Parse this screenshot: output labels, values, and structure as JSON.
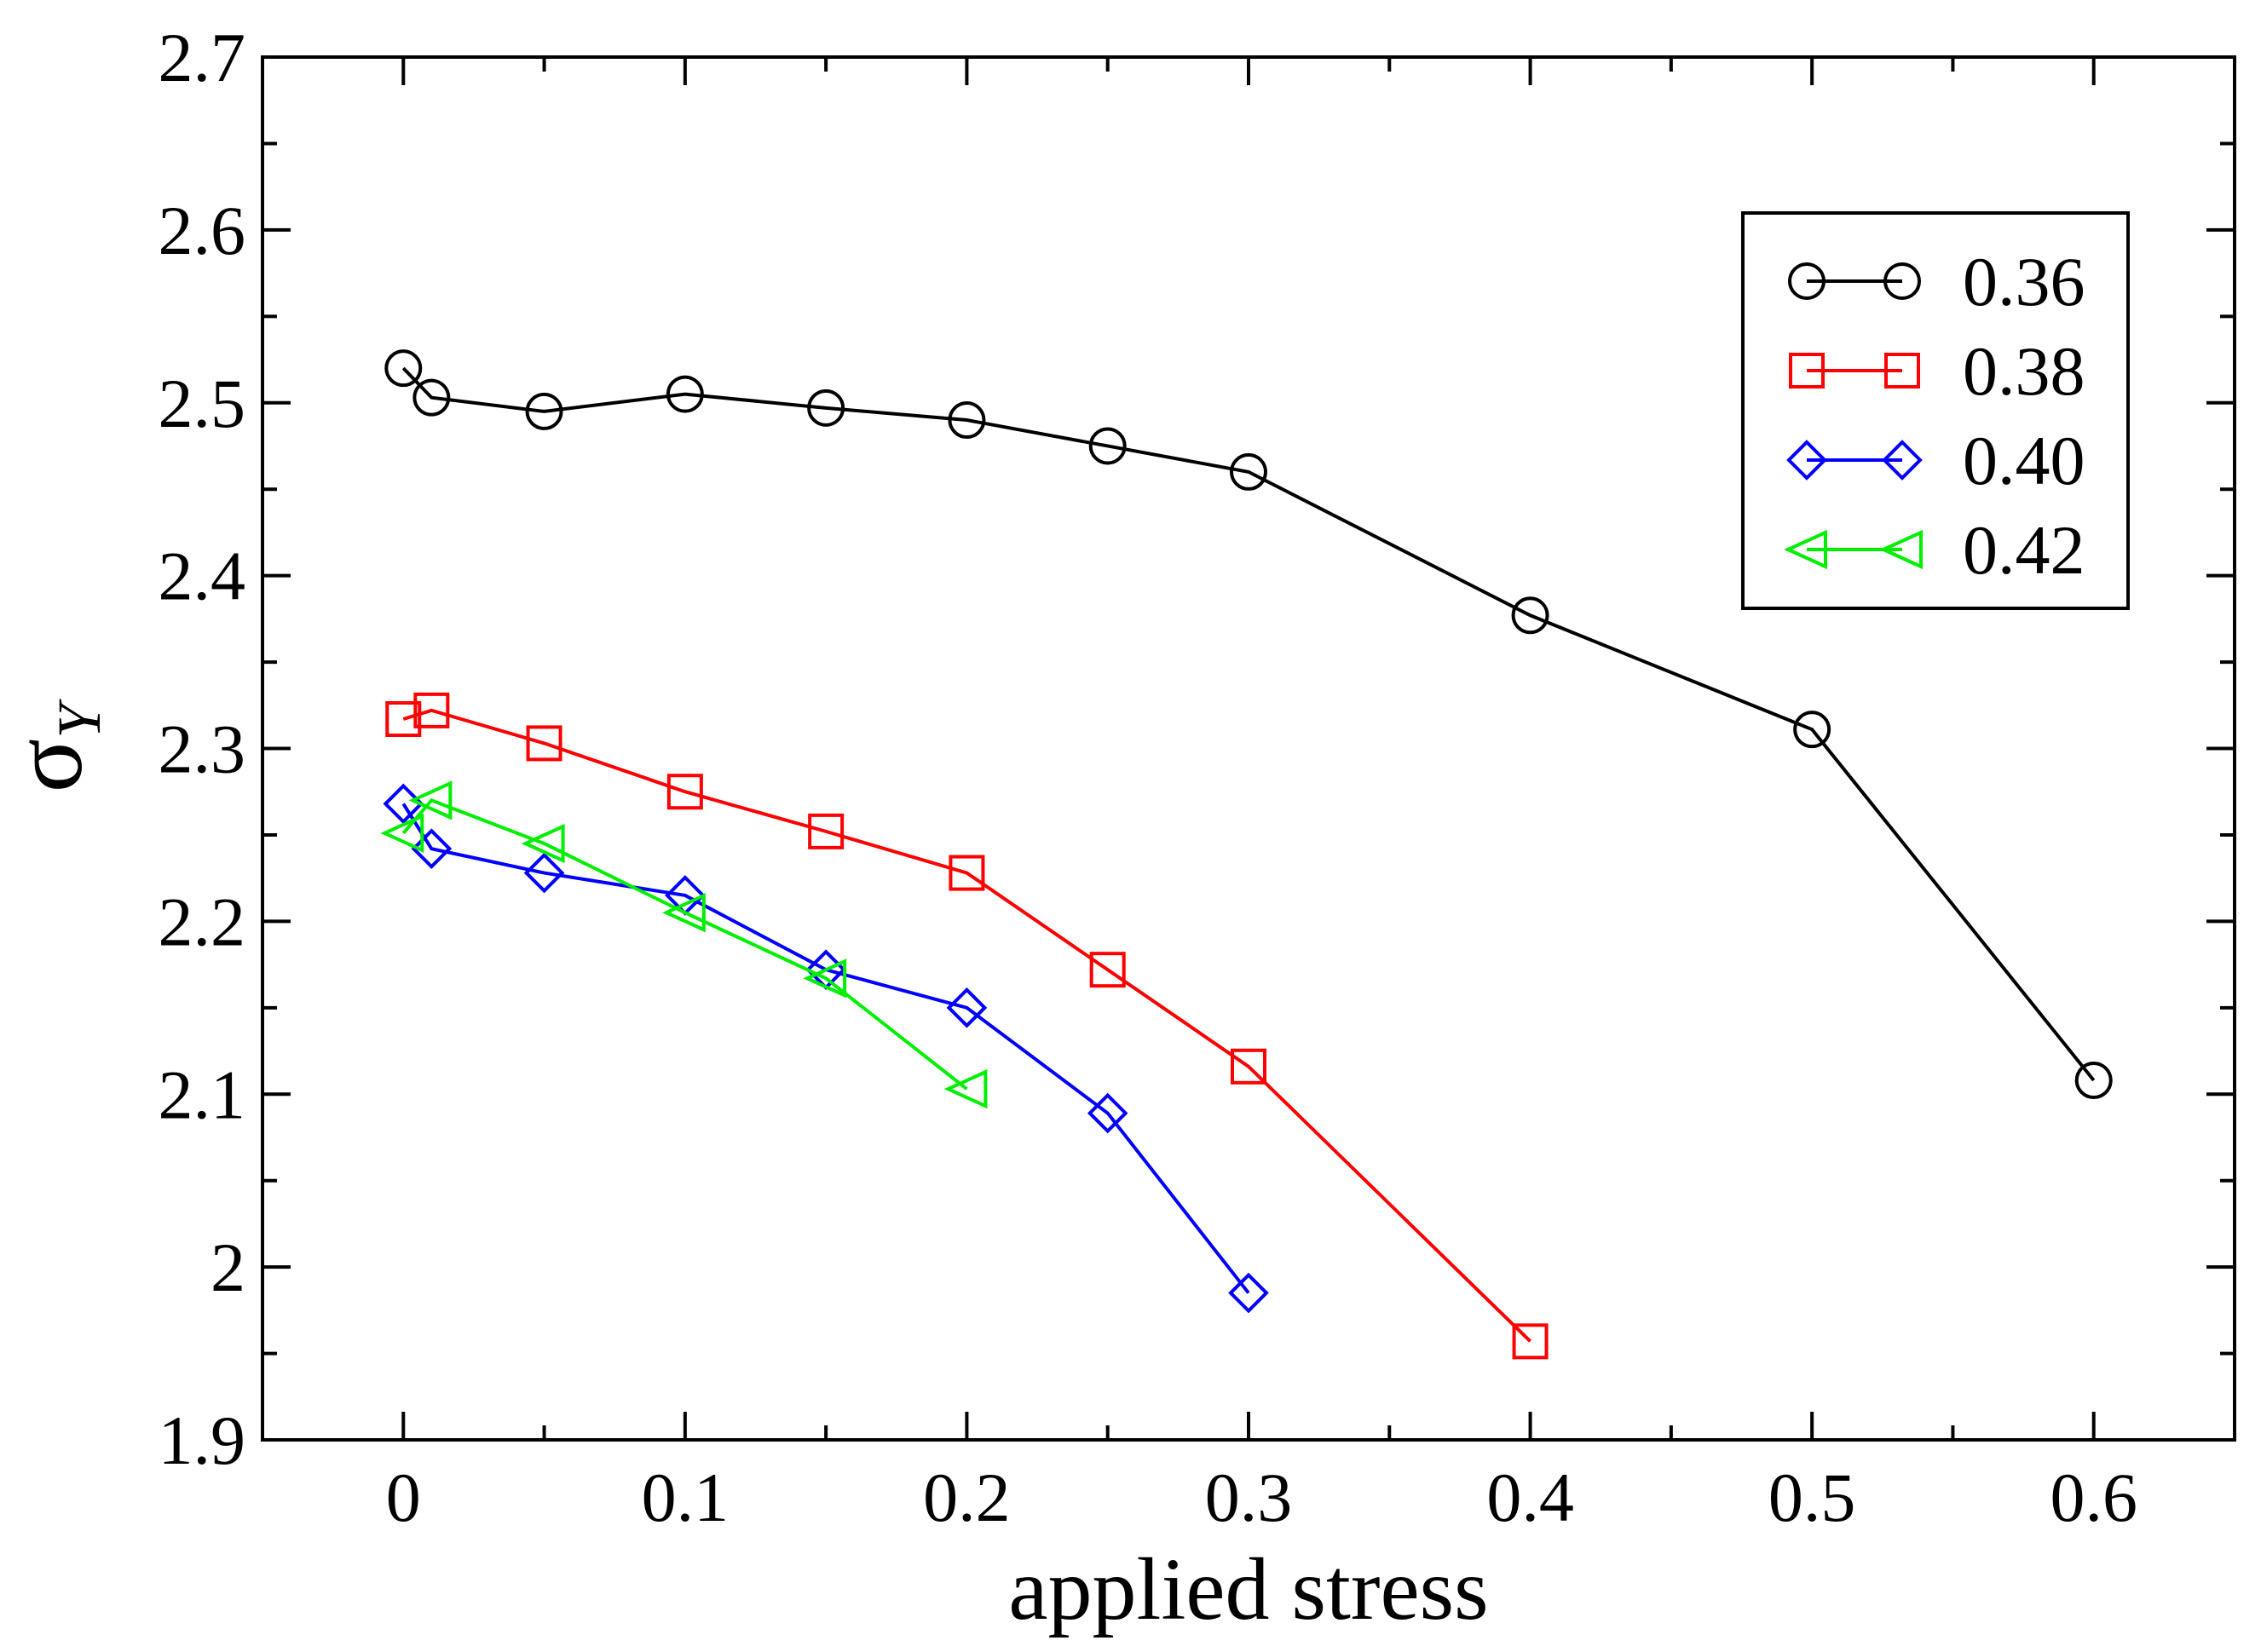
{
  "chart_data": {
    "type": "line",
    "title": "",
    "xlabel": "applied stress",
    "ylabel": "σ",
    "ylabel_subscript": "Y",
    "xlim": [
      -0.05,
      0.65
    ],
    "ylim": [
      1.9,
      2.7
    ],
    "xticks": [
      0,
      0.1,
      0.2,
      0.3,
      0.4,
      0.5,
      0.6
    ],
    "xtick_labels": [
      "0",
      "0.1",
      "0.2",
      "0.3",
      "0.4",
      "0.5",
      "0.6"
    ],
    "xminor": [
      -0.05,
      0.05,
      0.15,
      0.25,
      0.35,
      0.45,
      0.55,
      0.65
    ],
    "yticks": [
      1.9,
      2.0,
      2.1,
      2.2,
      2.3,
      2.4,
      2.5,
      2.6,
      2.7
    ],
    "ytick_labels": [
      "1.9",
      "2",
      "2.1",
      "2.2",
      "2.3",
      "2.4",
      "2.5",
      "2.6",
      "2.7"
    ],
    "yminor": [
      1.95,
      2.05,
      2.15,
      2.25,
      2.35,
      2.45,
      2.55,
      2.65
    ],
    "grid": false,
    "legend_position": "top-right",
    "series": [
      {
        "name": "0.36",
        "color": "#000000",
        "marker": "circle",
        "x": [
          0,
          0.01,
          0.05,
          0.1,
          0.15,
          0.2,
          0.25,
          0.3,
          0.4,
          0.5,
          0.6
        ],
        "y": [
          2.52,
          2.503,
          2.495,
          2.505,
          2.497,
          2.49,
          2.475,
          2.46,
          2.377,
          2.311,
          2.108
        ]
      },
      {
        "name": "0.38",
        "color": "#ff0000",
        "marker": "square",
        "x": [
          0,
          0.01,
          0.05,
          0.1,
          0.15,
          0.2,
          0.25,
          0.3,
          0.4
        ],
        "y": [
          2.317,
          2.322,
          2.303,
          2.275,
          2.252,
          2.228,
          2.172,
          2.116,
          1.957
        ]
      },
      {
        "name": "0.40",
        "color": "#0000ff",
        "marker": "diamond",
        "x": [
          0,
          0.01,
          0.05,
          0.1,
          0.15,
          0.2,
          0.25,
          0.3
        ],
        "y": [
          2.268,
          2.242,
          2.228,
          2.215,
          2.172,
          2.15,
          2.089,
          1.985
        ]
      },
      {
        "name": "0.42",
        "color": "#00ee00",
        "marker": "triangle-left",
        "x": [
          0,
          0.01,
          0.05,
          0.1,
          0.15,
          0.2
        ],
        "y": [
          2.251,
          2.27,
          2.245,
          2.205,
          2.167,
          2.103
        ]
      }
    ]
  }
}
